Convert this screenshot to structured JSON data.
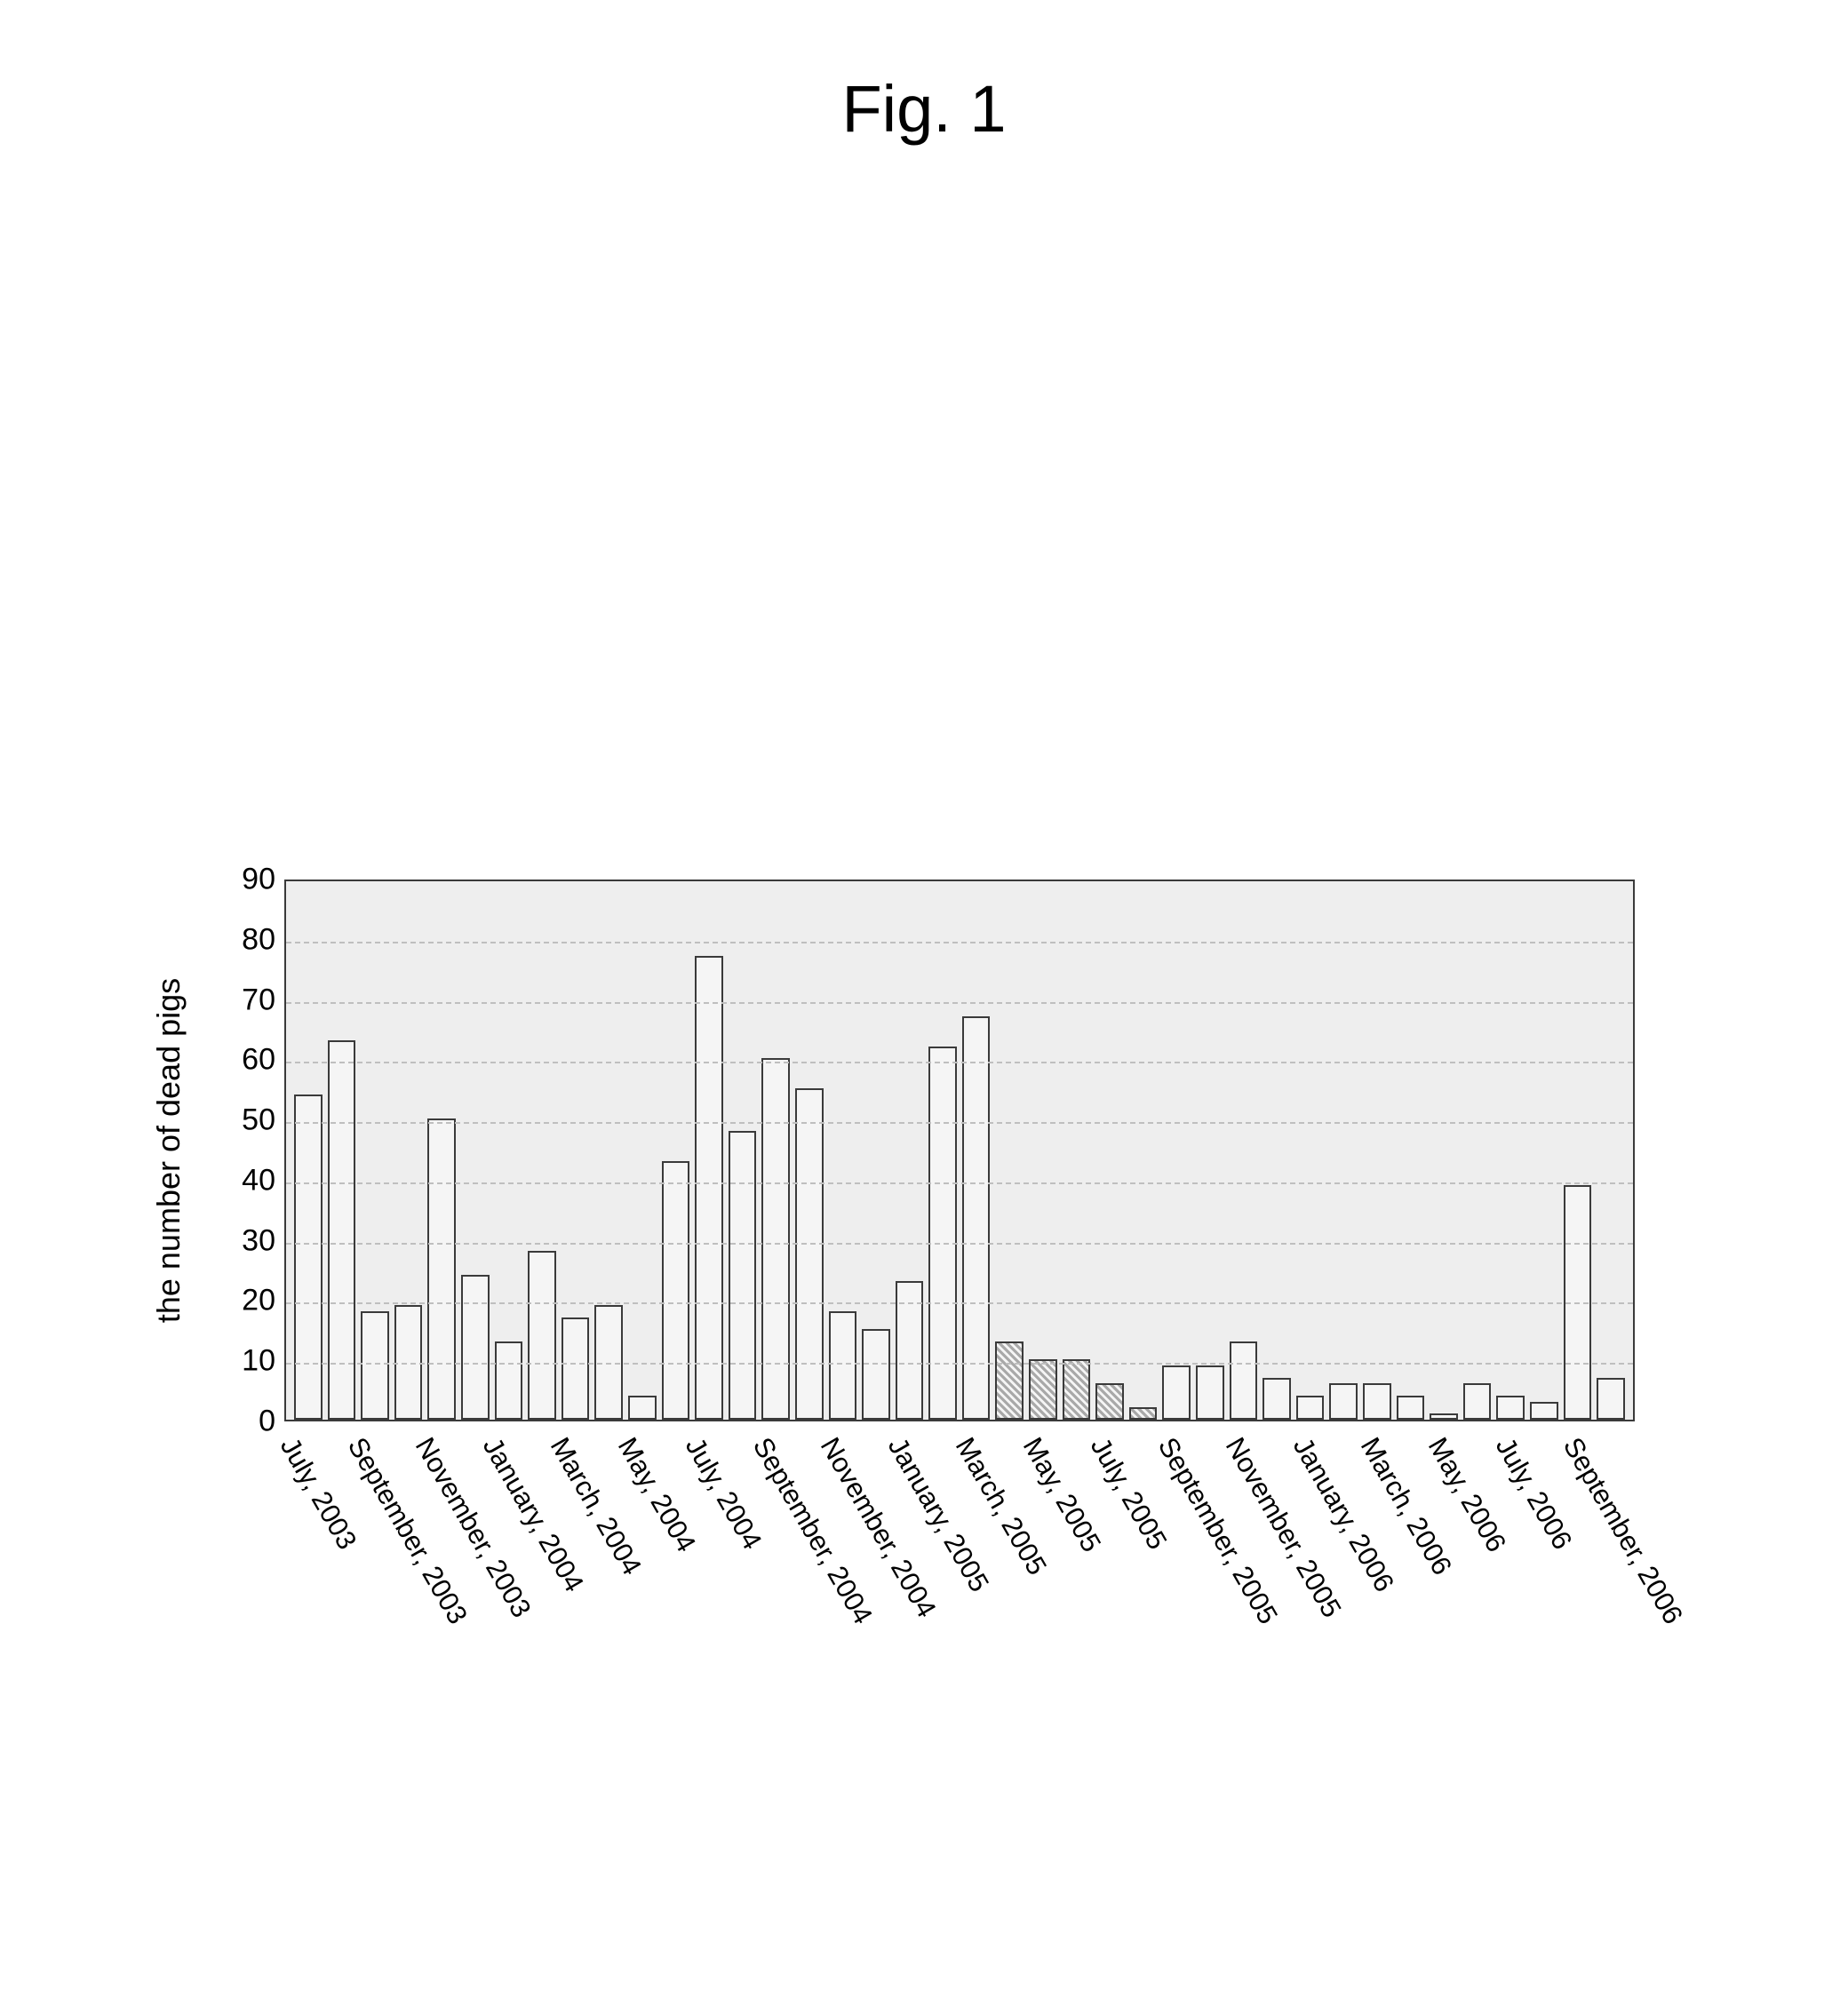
{
  "figure_title": "Fig. 1",
  "chart": {
    "type": "bar",
    "ylabel": "the number of dead pigs",
    "ylim": [
      0,
      90
    ],
    "ytick_step": 10,
    "yticks": [
      0,
      10,
      20,
      30,
      40,
      50,
      60,
      70,
      80,
      90
    ],
    "background_color": "#eeeeee",
    "grid_color": "#bfbfbf",
    "border_color": "#3a3a3a",
    "bar_border_color": "#3a3a3a",
    "bar_fill_default": "#f5f5f5",
    "bar_fill_hatched": "#a9a9a9",
    "label_fontsize": 36,
    "tick_fontsize": 34,
    "xlabel_fontsize": 31,
    "x_categories_visible": [
      "July, 2003",
      "September, 2003",
      "November, 2003",
      "January, 2004",
      "March, 2004",
      "May, 2004",
      "July, 2004",
      "September, 2004",
      "November, 2004",
      "January, 2005",
      "March, 2005",
      "May, 2005",
      "July, 2005",
      "September, 2005",
      "November, 2005",
      "January, 2006",
      "March, 2006",
      "May, 2006",
      "July, 2006",
      "September, 2006"
    ],
    "bars": [
      {
        "month": "July, 2003",
        "value": 54,
        "hatched": false,
        "show_label": true
      },
      {
        "month": "August, 2003",
        "value": 63,
        "hatched": false,
        "show_label": false
      },
      {
        "month": "September, 2003",
        "value": 18,
        "hatched": false,
        "show_label": true
      },
      {
        "month": "October, 2003",
        "value": 19,
        "hatched": false,
        "show_label": false
      },
      {
        "month": "November, 2003",
        "value": 50,
        "hatched": false,
        "show_label": true
      },
      {
        "month": "December, 2003",
        "value": 24,
        "hatched": false,
        "show_label": false
      },
      {
        "month": "January, 2004",
        "value": 13,
        "hatched": false,
        "show_label": true
      },
      {
        "month": "February, 2004",
        "value": 28,
        "hatched": false,
        "show_label": false
      },
      {
        "month": "March, 2004",
        "value": 17,
        "hatched": false,
        "show_label": true
      },
      {
        "month": "April, 2004",
        "value": 19,
        "hatched": false,
        "show_label": false
      },
      {
        "month": "May, 2004",
        "value": 4,
        "hatched": false,
        "show_label": true
      },
      {
        "month": "June, 2004",
        "value": 43,
        "hatched": false,
        "show_label": false
      },
      {
        "month": "July, 2004",
        "value": 77,
        "hatched": false,
        "show_label": true
      },
      {
        "month": "August, 2004",
        "value": 48,
        "hatched": false,
        "show_label": false
      },
      {
        "month": "September, 2004",
        "value": 60,
        "hatched": false,
        "show_label": true
      },
      {
        "month": "October, 2004",
        "value": 55,
        "hatched": false,
        "show_label": false
      },
      {
        "month": "November, 2004",
        "value": 18,
        "hatched": false,
        "show_label": true
      },
      {
        "month": "December, 2004",
        "value": 15,
        "hatched": false,
        "show_label": false
      },
      {
        "month": "January, 2005",
        "value": 23,
        "hatched": false,
        "show_label": true
      },
      {
        "month": "February, 2005",
        "value": 62,
        "hatched": false,
        "show_label": false
      },
      {
        "month": "March, 2005",
        "value": 67,
        "hatched": false,
        "show_label": true
      },
      {
        "month": "April, 2005",
        "value": 13,
        "hatched": true,
        "show_label": false
      },
      {
        "month": "May, 2005",
        "value": 10,
        "hatched": true,
        "show_label": true
      },
      {
        "month": "June, 2005",
        "value": 10,
        "hatched": true,
        "show_label": false
      },
      {
        "month": "July, 2005",
        "value": 6,
        "hatched": true,
        "show_label": true
      },
      {
        "month": "August, 2005",
        "value": 2,
        "hatched": true,
        "show_label": false
      },
      {
        "month": "September, 2005",
        "value": 9,
        "hatched": false,
        "show_label": true
      },
      {
        "month": "October, 2005",
        "value": 9,
        "hatched": false,
        "show_label": false
      },
      {
        "month": "November, 2005",
        "value": 13,
        "hatched": false,
        "show_label": true
      },
      {
        "month": "December, 2005",
        "value": 7,
        "hatched": false,
        "show_label": false
      },
      {
        "month": "January, 2006",
        "value": 4,
        "hatched": false,
        "show_label": true
      },
      {
        "month": "February, 2006",
        "value": 6,
        "hatched": false,
        "show_label": false
      },
      {
        "month": "March, 2006",
        "value": 6,
        "hatched": false,
        "show_label": true
      },
      {
        "month": "April, 2006",
        "value": 4,
        "hatched": false,
        "show_label": false
      },
      {
        "month": "May, 2006",
        "value": 1,
        "hatched": false,
        "show_label": true
      },
      {
        "month": "June, 2006",
        "value": 6,
        "hatched": false,
        "show_label": false
      },
      {
        "month": "July, 2006",
        "value": 4,
        "hatched": false,
        "show_label": true
      },
      {
        "month": "August, 2006",
        "value": 3,
        "hatched": false,
        "show_label": false
      },
      {
        "month": "September, 2006",
        "value": 39,
        "hatched": false,
        "show_label": true
      },
      {
        "month": "October, 2006",
        "value": 7,
        "hatched": false,
        "show_label": false
      }
    ]
  }
}
